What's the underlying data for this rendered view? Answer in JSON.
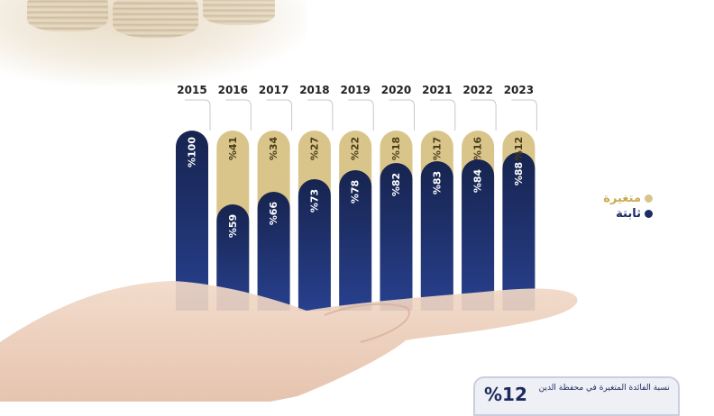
{
  "chart_data": {
    "type": "bar",
    "categories": [
      "2015",
      "2016",
      "2017",
      "2018",
      "2019",
      "2020",
      "2021",
      "2022",
      "2023"
    ],
    "series": [
      {
        "name": "ثابتة",
        "values": [
          100,
          59,
          66,
          73,
          78,
          82,
          83,
          84,
          88
        ]
      },
      {
        "name": "متغيرة",
        "values": [
          0,
          41,
          34,
          27,
          22,
          18,
          17,
          16,
          12
        ]
      }
    ],
    "labels_fixed": [
      "%100",
      "%59",
      "%66",
      "%73",
      "%78",
      "%82",
      "%83",
      "%84",
      "%88"
    ],
    "labels_variable": [
      "",
      "%41",
      "%34",
      "%27",
      "%22",
      "%18",
      "%17",
      "%16",
      "%12"
    ],
    "stacked": true,
    "ylim": [
      0,
      100
    ],
    "legend_position": "right",
    "colors": {
      "fixed": "#1d2b66",
      "variable": "#d9c48a"
    }
  },
  "legend": {
    "variable": "متغيرة",
    "fixed": "ثابتة"
  },
  "info_card": {
    "percent": "%12",
    "text": "نسبة الفائدة المتغيرة في محفظة الدين"
  }
}
